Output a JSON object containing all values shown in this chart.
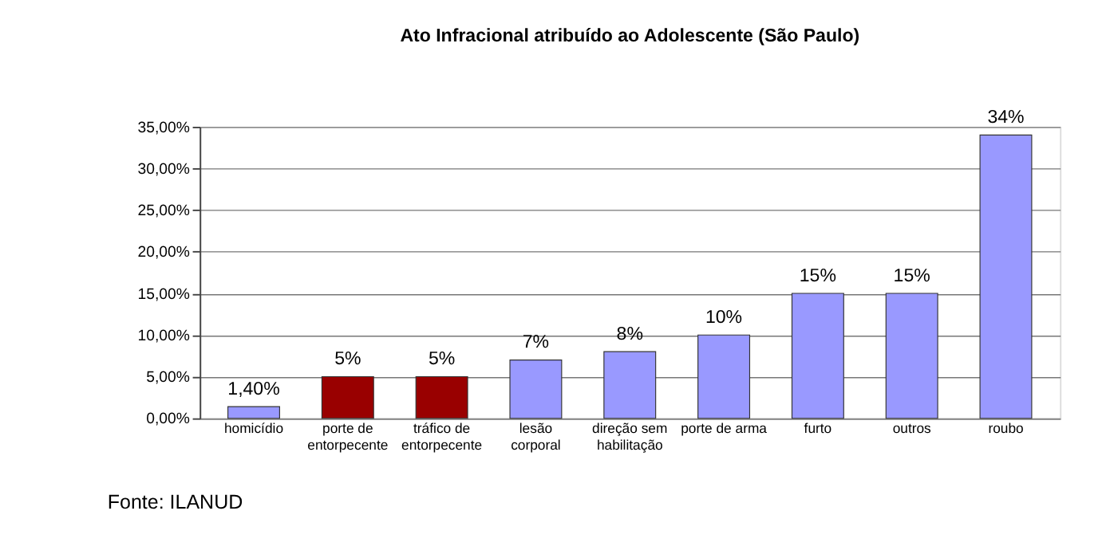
{
  "chart_data": {
    "type": "bar",
    "title": "Ato Infracional atribuído ao Adolescente (São Paulo)",
    "categories": [
      "homicídio",
      "porte de\nentorpecente",
      "tráfico de\nentorpecente",
      "lesão\ncorporal",
      "direção sem\nhabilitação",
      "porte de arma",
      "furto",
      "outros",
      "roubo"
    ],
    "values": [
      1.4,
      5,
      5,
      7,
      8,
      10,
      15,
      15,
      34
    ],
    "colors": [
      "#9999ff",
      "#990000",
      "#990000",
      "#9999ff",
      "#9999ff",
      "#9999ff",
      "#9999ff",
      "#9999ff",
      "#9999ff"
    ],
    "value_labels": [
      "1,40%",
      "5%",
      "5%",
      "7%",
      "8%",
      "10%",
      "15%",
      "15%",
      "34%"
    ],
    "ylim": [
      0,
      35
    ],
    "yticks": [
      {
        "value": 0,
        "label": "0,00%"
      },
      {
        "value": 5,
        "label": "5,00%"
      },
      {
        "value": 10,
        "label": "10,00%"
      },
      {
        "value": 15,
        "label": "15,00%"
      },
      {
        "value": 20,
        "label": "20,00%"
      },
      {
        "value": 25,
        "label": "25,00%"
      },
      {
        "value": 30,
        "label": "30,00%"
      },
      {
        "value": 35,
        "label": "35,00%"
      }
    ],
    "grid": "y",
    "annotations": [
      "Fonte: ILANUD"
    ]
  }
}
